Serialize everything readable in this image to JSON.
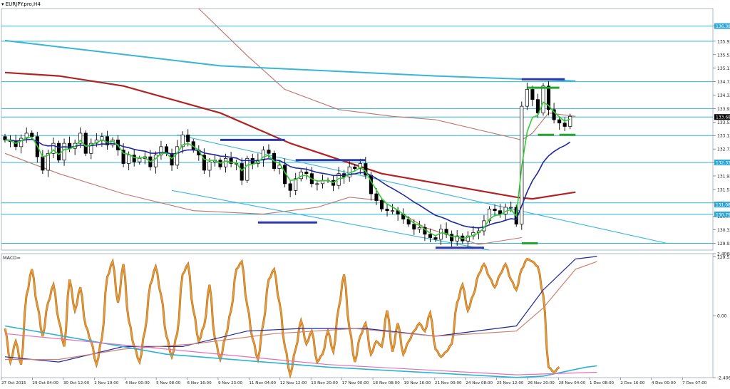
{
  "window": {
    "title": "EURJPY.pro,H4"
  },
  "colors": {
    "background": "#ffffff",
    "grid": "#cfe3f5",
    "hline": "#2fb6d6",
    "channel": "#39b5d8",
    "ma_slow": "#b22222",
    "ma_mid": "#c0746a",
    "ma_blue": "#1f2aa0",
    "ma_green": "#33cc33",
    "candle": "#000000",
    "marker_blue": "#2b3aa8",
    "marker_green": "#22a62e",
    "macd_orange": "#f0a030",
    "macd_brown": "#b8742a",
    "macd_blue": "#1f2aa0",
    "macd_pink": "#e070b8",
    "macd_cyan": "#2ab3d6",
    "macd_salmon": "#d08070",
    "label_bg": "#2fa6d4",
    "label_text": "#ffffff"
  },
  "chart_data": [
    {
      "type": "candlestick",
      "title": "EURJPY.pro,H4",
      "ylim": [
        129.73,
        136.9
      ],
      "y_ticks": [
        "136.39",
        "135.93",
        "135.53",
        "135.13",
        "134.73",
        "134.33",
        "133.93",
        "133.53",
        "133.13",
        "132.73",
        "132.33",
        "131.93",
        "131.53",
        "131.13",
        "130.73",
        "130.33",
        "129.93",
        "129.53"
      ],
      "price_labels": [
        {
          "text": "136.38",
          "value": 136.38
        },
        {
          "text": "133.68",
          "value": 133.68
        },
        {
          "text": "132.33",
          "value": 132.33
        },
        {
          "text": "131.08",
          "value": 131.08
        },
        {
          "text": "130.79",
          "value": 130.79
        }
      ],
      "x_labels": [
        "27 Oct 2015",
        "29 Oct 04:00",
        "30 Oct 12:00",
        "2 Nov 19:00",
        "4 Nov 00:00",
        "5 Nov 08:00",
        "6 Nov 16:00",
        "9 Nov 23:00",
        "11 Nov 04:00",
        "12 Nov 12:00",
        "13 Nov 20:00",
        "17 Nov 00:00",
        "18 Nov 08:00",
        "19 Nov 16:00",
        "21 Nov 00:00",
        "24 Nov 08:00",
        "25 Nov 12:00",
        "26 Nov 20:00",
        "28 Nov 04:00",
        "1 Dec 08:00",
        "2 Dec 16:00",
        "4 Dec 00:00",
        "7 Dec 07:00"
      ],
      "horizontal_levels": [
        136.38,
        135.93,
        134.73,
        133.93,
        133.68,
        133.13,
        132.33,
        131.13,
        130.79,
        129.93
      ],
      "series_close": [
        133.0,
        132.95,
        132.8,
        133.05,
        133.2,
        133.1,
        132.5,
        132.1,
        132.6,
        132.9,
        132.4,
        132.9,
        132.75,
        132.9,
        133.2,
        132.6,
        132.9,
        133.0,
        133.1,
        132.85,
        133.0,
        132.7,
        132.3,
        132.55,
        132.35,
        132.45,
        132.5,
        132.2,
        132.55,
        132.8,
        132.6,
        132.25,
        132.8,
        133.15,
        132.95,
        132.7,
        132.55,
        132.1,
        132.35,
        132.4,
        132.2,
        132.45,
        132.3,
        132.3,
        131.8,
        132.45,
        132.3,
        132.4,
        132.7,
        132.6,
        132.15,
        132.25,
        131.7,
        131.5,
        131.85,
        132.05,
        132.0,
        131.7,
        131.7,
        131.8,
        131.8,
        131.65,
        132.0,
        131.9,
        132.2,
        132.15,
        132.3,
        131.95,
        131.4,
        131.2,
        130.95,
        130.9,
        130.9,
        130.8,
        130.65,
        130.5,
        130.35,
        130.4,
        130.2,
        130.1,
        130.05,
        130.35,
        130.2,
        130.0,
        130.15,
        130.0,
        130.15,
        130.25,
        130.3,
        130.6,
        130.95,
        130.9,
        130.8,
        131.0,
        131.0,
        130.5,
        134.0,
        134.5,
        134.2,
        133.8,
        134.6,
        133.9,
        133.6,
        133.5,
        133.4,
        133.7
      ],
      "lines": [
        {
          "key": "ma_slow",
          "points": [
            [
              0,
              135.0
            ],
            [
              10,
              134.9
            ],
            [
              22,
              134.6
            ],
            [
              40,
              133.8
            ],
            [
              53,
              132.9
            ],
            [
              70,
              132.0
            ],
            [
              95,
              131.3
            ],
            [
              98,
              131.25
            ],
            [
              106,
              131.45
            ]
          ]
        },
        {
          "key": "ma_mid",
          "points": [
            [
              36,
              136.9
            ],
            [
              45,
              135.5
            ],
            [
              52,
              134.5
            ],
            [
              62,
              133.9
            ],
            [
              72,
              133.7
            ],
            [
              80,
              133.6
            ],
            [
              96,
              133.0
            ],
            [
              98,
              133.2
            ],
            [
              101,
              133.8
            ],
            [
              106,
              133.7
            ]
          ]
        },
        {
          "key": "ma_mid",
          "points": [
            [
              0,
              132.6
            ],
            [
              10,
              132.0
            ],
            [
              22,
              131.4
            ],
            [
              35,
              130.9
            ],
            [
              48,
              130.8
            ],
            [
              58,
              131.0
            ],
            [
              64,
              131.3
            ],
            [
              70,
              131.2
            ],
            [
              78,
              130.4
            ],
            [
              88,
              129.9
            ],
            [
              96,
              130.1
            ]
          ]
        },
        {
          "key": "channel_upper",
          "points": [
            [
              0,
              135.95
            ],
            [
              40,
              135.2
            ],
            [
              80,
              134.9
            ],
            [
              106,
              134.75
            ]
          ]
        },
        {
          "key": "channel_mid_upper",
          "points": [
            [
              32,
              133.15
            ],
            [
              123,
              129.93
            ]
          ]
        },
        {
          "key": "channel_mid_lower",
          "points": [
            [
              31,
              131.5
            ],
            [
              90,
              129.73
            ]
          ]
        }
      ],
      "level_markers": [
        {
          "color_key": "marker_blue",
          "x0": 40,
          "x1": 52,
          "y": 133.0
        },
        {
          "color_key": "marker_blue",
          "x0": 54,
          "x1": 67,
          "y": 132.4
        },
        {
          "color_key": "marker_blue",
          "x0": 47,
          "x1": 58,
          "y": 130.55
        },
        {
          "color_key": "marker_blue",
          "x0": 80,
          "x1": 89,
          "y": 129.8
        },
        {
          "color_key": "marker_blue",
          "x0": 96,
          "x1": 104,
          "y": 134.8
        },
        {
          "color_key": "marker_green",
          "x0": 97,
          "x1": 103,
          "y": 134.55
        },
        {
          "color_key": "marker_green",
          "x0": 99,
          "x1": 102,
          "y": 133.15
        },
        {
          "color_key": "marker_green",
          "x0": 103,
          "x1": 106,
          "y": 133.15
        },
        {
          "color_key": "marker_green",
          "x0": 96,
          "x1": 99,
          "y": 129.93
        }
      ]
    },
    {
      "type": "line",
      "title": "MACD=",
      "ylim": [
        -2.4068,
        2.4068
      ],
      "y_ticks": [
        "2.4068",
        "0.00",
        "-2.4068"
      ],
      "series": [
        {
          "key": "macd_orange",
          "values": [
            -0.5,
            -1.8,
            -1.0,
            -1.9,
            0.8,
            1.8,
            0.4,
            -0.8,
            0.5,
            1.2,
            -0.2,
            -1.2,
            1.4,
            0.2,
            1.1,
            -0.4,
            -1.0,
            -1.9,
            -0.9,
            1.5,
            2.1,
            0.5,
            2.0,
            -0.2,
            -1.2,
            -1.8,
            -0.6,
            1.2,
            1.9,
            0.8,
            -0.8,
            -1.6,
            -0.7,
            1.6,
            2.0,
            0.2,
            -1.0,
            -0.4,
            1.2,
            -0.9,
            -1.7,
            -0.8,
            0.2,
            1.8,
            2.1,
            0.4,
            -0.9,
            -1.7,
            -0.3,
            1.4,
            1.8,
            0.5,
            -1.2,
            -2.3,
            -1.3,
            -0.2,
            -1.1,
            -0.6,
            -1.8,
            -1.5,
            -0.6,
            -1.4,
            0.3,
            1.6,
            -0.5,
            -1.8,
            -0.8,
            -0.3,
            -1.5,
            -1.0,
            -1.2,
            0.2,
            -1.4,
            -0.3,
            -1.5,
            -1.0,
            -0.6,
            -0.3,
            -0.6,
            0.1,
            -1.3,
            -1.6,
            -1.4,
            -1.1,
            0.5,
            1.2,
            0.2,
            0.8,
            1.6,
            2.0,
            1.5,
            1.1,
            1.6,
            2.0,
            1.4,
            1.0,
            1.8,
            2.2,
            2.1,
            1.9,
            0.8,
            -2.0,
            -2.2,
            -2.0
          ]
        }
      ],
      "lines": [
        {
          "key": "macd_blue",
          "points": [
            [
              0,
              -1.6
            ],
            [
              10,
              -1.8
            ],
            [
              22,
              -1.2
            ],
            [
              33,
              -1.2
            ],
            [
              45,
              -0.6
            ],
            [
              55,
              -0.5
            ],
            [
              67,
              -0.5
            ],
            [
              80,
              -0.8
            ],
            [
              95,
              -0.4
            ],
            [
              100,
              1.0
            ],
            [
              106,
              2.2
            ],
            [
              110,
              2.3
            ]
          ]
        },
        {
          "key": "macd_salmon",
          "points": [
            [
              0,
              -1.7
            ],
            [
              10,
              -1.7
            ],
            [
              22,
              -1.3
            ],
            [
              35,
              -1.1
            ],
            [
              50,
              -0.7
            ],
            [
              65,
              -0.5
            ],
            [
              80,
              -0.8
            ],
            [
              95,
              -0.6
            ],
            [
              100,
              0.3
            ],
            [
              106,
              1.8
            ],
            [
              110,
              2.1
            ]
          ]
        },
        {
          "key": "macd_cyan",
          "points": [
            [
              0,
              -0.4
            ],
            [
              30,
              -1.5
            ],
            [
              60,
              -2.0
            ],
            [
              95,
              -2.4
            ],
            [
              100,
              -2.35
            ],
            [
              108,
              -2.0
            ],
            [
              110,
              -1.95
            ]
          ]
        },
        {
          "key": "macd_pink",
          "points": [
            [
              0,
              -0.7
            ],
            [
              30,
              -1.3
            ],
            [
              60,
              -1.9
            ],
            [
              95,
              -2.3
            ],
            [
              110,
              -2.2
            ]
          ]
        }
      ]
    }
  ]
}
